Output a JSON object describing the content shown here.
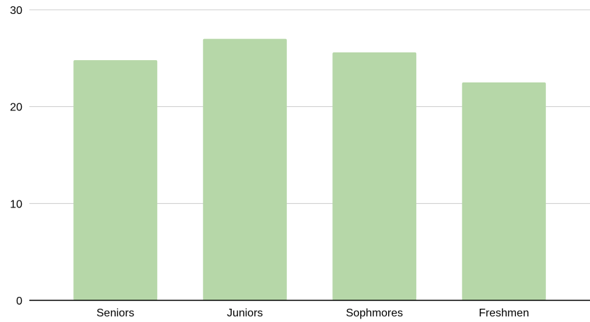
{
  "chart_data": {
    "type": "bar",
    "title": "",
    "xlabel": "",
    "ylabel": "",
    "categories": [
      "Seniors",
      "Juniors",
      "Sophmores",
      "Freshmen"
    ],
    "values": [
      24.8,
      27.0,
      25.6,
      22.5
    ],
    "ylim": [
      0,
      30
    ],
    "yticks": [
      0,
      10,
      20,
      30
    ],
    "grid": true,
    "legend": "none",
    "bar_color": "#b6d7a8",
    "gridline_color": "#cccccc",
    "axis_color": "#000000"
  }
}
